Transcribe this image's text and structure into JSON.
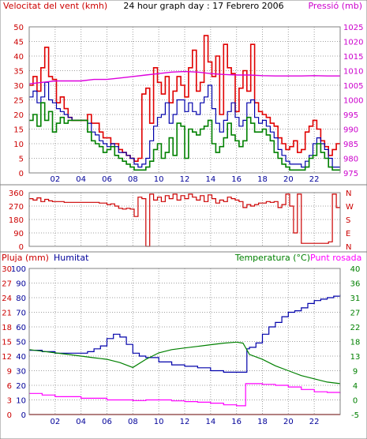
{
  "colors": {
    "wind": "#e00000",
    "wind_avg": "#0000aa",
    "wind_low": "#008000",
    "pressure": "#dd00dd",
    "direction": "#cc0000",
    "humidity": "#0000aa",
    "temperature": "#008000",
    "dew_point": "#ff00ff",
    "rain": "#cc0000",
    "grid": "#a0a0a0",
    "frame": "#808080",
    "left_axis": "#cc0000",
    "humidity_axis": "#000099",
    "temperature_axis": "#008000",
    "pressure_axis": "#cc00cc"
  },
  "chart_data": [
    {
      "type": "line",
      "title": "24 hour graph day : 17 Febrero 2006",
      "ylabel": "Velocitat del vent (kmh)",
      "y2label": "Pressió (mb)",
      "ylim": [
        0,
        50
      ],
      "y2lim": [
        975,
        1025
      ],
      "yticks": [
        "50",
        "45",
        "40",
        "35",
        "30",
        "25",
        "20",
        "15",
        "10",
        "5",
        "0"
      ],
      "y2ticks": [
        "1025",
        "1020",
        "1015",
        "1010",
        "1005",
        "1000",
        "995",
        "990",
        "985",
        "980",
        "975"
      ],
      "xlim": [
        0,
        24
      ],
      "xticks": [
        "02",
        "04",
        "06",
        "08",
        "10",
        "12",
        "14",
        "16",
        "18",
        "20",
        "22"
      ],
      "grid": true,
      "series": [
        {
          "key": "wind_gust",
          "axis": "left",
          "step": true,
          "x": [
            0.0,
            0.3,
            0.6,
            0.9,
            1.2,
            1.5,
            1.8,
            2.1,
            2.4,
            2.7,
            3.0,
            3.3,
            3.6,
            3.9,
            4.2,
            4.5,
            4.8,
            5.1,
            5.4,
            5.7,
            6.0,
            6.3,
            6.6,
            6.9,
            7.2,
            7.5,
            7.8,
            8.1,
            8.4,
            8.7,
            9.0,
            9.3,
            9.6,
            9.9,
            10.2,
            10.5,
            10.8,
            11.1,
            11.4,
            11.7,
            12.0,
            12.3,
            12.6,
            12.9,
            13.2,
            13.5,
            13.8,
            14.1,
            14.4,
            14.7,
            15.0,
            15.3,
            15.6,
            15.9,
            16.2,
            16.5,
            16.8,
            17.1,
            17.4,
            17.7,
            18.0,
            18.3,
            18.6,
            18.9,
            19.2,
            19.5,
            19.8,
            20.1,
            20.4,
            20.7,
            21.0,
            21.3,
            21.6,
            21.9,
            22.2,
            22.5,
            22.8,
            23.1,
            23.4,
            23.7
          ],
          "y": [
            30,
            33,
            28,
            36,
            43,
            33,
            32,
            24,
            26,
            22,
            19,
            18,
            18,
            18,
            18,
            20,
            17,
            17,
            14,
            12,
            12,
            10,
            10,
            8,
            7,
            6,
            5,
            4,
            5,
            27,
            29,
            17,
            36,
            31,
            27,
            33,
            24,
            28,
            33,
            30,
            26,
            36,
            42,
            28,
            31,
            47,
            38,
            33,
            40,
            20,
            44,
            36,
            34,
            21,
            29,
            35,
            28,
            44,
            24,
            21,
            20,
            19,
            17,
            16,
            12,
            10,
            8,
            9,
            11,
            7,
            8,
            14,
            16,
            18,
            15,
            11,
            9,
            6,
            8,
            10
          ]
        },
        {
          "key": "wind_avg",
          "axis": "left",
          "step": true,
          "x": [
            0.0,
            0.3,
            0.6,
            0.9,
            1.2,
            1.5,
            1.8,
            2.1,
            2.4,
            2.7,
            3.0,
            3.3,
            3.6,
            3.9,
            4.2,
            4.5,
            4.8,
            5.1,
            5.4,
            5.7,
            6.0,
            6.3,
            6.6,
            6.9,
            7.2,
            7.5,
            7.8,
            8.1,
            8.4,
            8.7,
            9.0,
            9.3,
            9.6,
            9.9,
            10.2,
            10.5,
            10.8,
            11.1,
            11.4,
            11.7,
            12.0,
            12.3,
            12.6,
            12.9,
            13.2,
            13.5,
            13.8,
            14.1,
            14.4,
            14.7,
            15.0,
            15.3,
            15.6,
            15.9,
            16.2,
            16.5,
            16.8,
            17.1,
            17.4,
            17.7,
            18.0,
            18.3,
            18.6,
            18.9,
            19.2,
            19.5,
            19.8,
            20.1,
            20.4,
            20.7,
            21.0,
            21.3,
            21.6,
            21.9,
            22.2,
            22.5,
            22.8,
            23.1,
            23.4,
            23.7
          ],
          "y": [
            26,
            28,
            24,
            26,
            31,
            25,
            24,
            22,
            21,
            20,
            19,
            18,
            18,
            18,
            18,
            17,
            14,
            13,
            11,
            10,
            9,
            10,
            9,
            7,
            7,
            6,
            5,
            3,
            2,
            3,
            5,
            11,
            16,
            19,
            20,
            24,
            17,
            20,
            25,
            25,
            21,
            24,
            21,
            20,
            24,
            26,
            30,
            22,
            17,
            14,
            18,
            21,
            24,
            19,
            16,
            18,
            24,
            25,
            19,
            17,
            18,
            16,
            14,
            12,
            8,
            6,
            4,
            3,
            3,
            3,
            2,
            4,
            6,
            10,
            12,
            10,
            8,
            5,
            2,
            2
          ]
        },
        {
          "key": "wind_low",
          "axis": "left",
          "step": true,
          "x": [
            0.0,
            0.3,
            0.6,
            0.9,
            1.2,
            1.5,
            1.8,
            2.1,
            2.4,
            2.7,
            3.0,
            3.3,
            3.6,
            3.9,
            4.2,
            4.5,
            4.8,
            5.1,
            5.4,
            5.7,
            6.0,
            6.3,
            6.6,
            6.9,
            7.2,
            7.5,
            7.8,
            8.1,
            8.4,
            8.7,
            9.0,
            9.3,
            9.6,
            9.9,
            10.2,
            10.5,
            10.8,
            11.1,
            11.4,
            11.7,
            12.0,
            12.3,
            12.6,
            12.9,
            13.2,
            13.5,
            13.8,
            14.1,
            14.4,
            14.7,
            15.0,
            15.3,
            15.6,
            15.9,
            16.2,
            16.5,
            16.8,
            17.1,
            17.4,
            17.7,
            18.0,
            18.3,
            18.6,
            18.9,
            19.2,
            19.5,
            19.8,
            20.1,
            20.4,
            20.7,
            21.0,
            21.3,
            21.6,
            21.9,
            22.2,
            22.5,
            22.8,
            23.1,
            23.4,
            23.7
          ],
          "y": [
            18,
            20,
            16,
            24,
            18,
            21,
            14,
            17,
            19,
            17,
            18,
            18,
            18,
            18,
            18,
            14,
            11,
            10,
            9,
            7,
            8,
            9,
            6,
            5,
            4,
            3,
            2,
            1,
            1,
            1,
            2,
            4,
            8,
            10,
            5,
            7,
            12,
            6,
            17,
            16,
            5,
            15,
            14,
            13,
            15,
            16,
            18,
            10,
            7,
            9,
            12,
            17,
            13,
            11,
            9,
            11,
            19,
            17,
            14,
            14,
            15,
            13,
            11,
            7,
            5,
            3,
            2,
            1,
            1,
            1,
            1,
            2,
            5,
            6,
            10,
            7,
            5,
            2,
            1,
            1
          ]
        },
        {
          "key": "pressure",
          "axis": "right",
          "step": false,
          "x": [
            0,
            1,
            2,
            3,
            4,
            5,
            6,
            7,
            8,
            9,
            10,
            11,
            12,
            13,
            14,
            15,
            16,
            17,
            18,
            19,
            20,
            21,
            22,
            23,
            24
          ],
          "y": [
            1005.5,
            1006,
            1006.5,
            1006.5,
            1006.5,
            1007,
            1007,
            1007.5,
            1008,
            1008.5,
            1009,
            1009.5,
            1009.7,
            1009.5,
            1009,
            1008.7,
            1008.5,
            1008.5,
            1008.3,
            1008.2,
            1008.2,
            1008.2,
            1008.3,
            1008.2,
            1008.2
          ]
        }
      ]
    },
    {
      "type": "line",
      "ylabel": "",
      "ylim": [
        0,
        360
      ],
      "yticks": [
        "360",
        "270",
        "180",
        "90",
        "0"
      ],
      "y2ticks": [
        "N",
        "W",
        "S",
        "E",
        "N"
      ],
      "xlim": [
        0,
        24
      ],
      "grid": true,
      "series": [
        {
          "key": "wind_direction",
          "axis": "left",
          "step": true,
          "x": [
            0.0,
            0.3,
            0.6,
            0.9,
            1.2,
            1.5,
            1.8,
            2.1,
            2.4,
            2.7,
            3.0,
            3.3,
            3.6,
            3.9,
            4.2,
            4.5,
            4.8,
            5.1,
            5.4,
            5.7,
            6.0,
            6.3,
            6.6,
            6.9,
            7.2,
            7.5,
            7.8,
            8.1,
            8.4,
            8.7,
            9.0,
            9.3,
            9.6,
            9.9,
            10.2,
            10.5,
            10.8,
            11.1,
            11.4,
            11.7,
            12.0,
            12.3,
            12.6,
            12.9,
            13.2,
            13.5,
            13.8,
            14.1,
            14.4,
            14.7,
            15.0,
            15.3,
            15.6,
            15.9,
            16.2,
            16.5,
            16.8,
            17.1,
            17.4,
            17.7,
            18.0,
            18.3,
            18.6,
            18.9,
            19.2,
            19.5,
            19.8,
            20.1,
            20.4,
            20.7,
            21.0,
            21.3,
            21.6,
            21.9,
            22.2,
            22.5,
            22.8,
            23.1,
            23.4,
            23.7
          ],
          "y": [
            320,
            310,
            325,
            300,
            315,
            305,
            300,
            300,
            300,
            295,
            295,
            295,
            295,
            295,
            295,
            295,
            295,
            295,
            290,
            290,
            280,
            285,
            270,
            255,
            250,
            255,
            250,
            200,
            330,
            320,
            0,
            350,
            310,
            330,
            300,
            340,
            320,
            350,
            310,
            340,
            320,
            350,
            330,
            310,
            340,
            300,
            345,
            320,
            290,
            310,
            300,
            330,
            320,
            310,
            300,
            260,
            280,
            270,
            280,
            290,
            290,
            300,
            295,
            300,
            260,
            280,
            350,
            270,
            90,
            350,
            20,
            20,
            20,
            20,
            20,
            20,
            20,
            30,
            350,
            260
          ]
        }
      ]
    },
    {
      "type": "line",
      "ylabel": "Pluja (mm)",
      "ylabel2": "Humitat",
      "y2label": "Temperatura (°C)",
      "y2label2": "Punt rosada",
      "rain_ylim": [
        0,
        30
      ],
      "rain_ticks": [
        "30",
        "27",
        "24",
        "21",
        "18",
        "15",
        "12",
        "9",
        "6",
        "3",
        "0"
      ],
      "humidity_ylim": [
        0,
        100
      ],
      "humidity_ticks": [
        "100",
        "90",
        "80",
        "70",
        "60",
        "50",
        "40",
        "30",
        "20",
        "10",
        "0"
      ],
      "temperature_ylim": [
        -5,
        40
      ],
      "temperature_ticks": [
        "40",
        "36",
        "31",
        "27",
        "22",
        "18",
        "13",
        "9",
        "4",
        "0",
        "-5"
      ],
      "xlim": [
        0,
        24
      ],
      "xticks": [
        "02",
        "04",
        "06",
        "08",
        "10",
        "12",
        "14",
        "16",
        "18",
        "20",
        "22"
      ],
      "grid": true,
      "series": [
        {
          "key": "humidity",
          "axis": "humidity",
          "step": true,
          "x": [
            0,
            1,
            2,
            3,
            4,
            4.5,
            5,
            5.5,
            6,
            6.5,
            7,
            7.5,
            8,
            8.5,
            9,
            10,
            11,
            12,
            13,
            14,
            15,
            16,
            16.5,
            16.8,
            17,
            17.5,
            18,
            18.5,
            19,
            19.5,
            20,
            20.5,
            21,
            21.5,
            22,
            22.5,
            23,
            23.5,
            24
          ],
          "y": [
            44,
            43,
            42,
            42,
            42,
            43,
            45,
            47,
            52,
            55,
            53,
            48,
            42,
            40,
            39,
            36,
            34,
            33,
            32,
            30,
            29,
            29,
            29,
            45,
            46,
            49,
            55,
            60,
            63,
            67,
            70,
            71,
            73,
            76,
            78,
            79,
            80,
            81,
            82
          ]
        },
        {
          "key": "temperature",
          "axis": "temperature",
          "step": false,
          "x": [
            0,
            1,
            2,
            3,
            4,
            5,
            6,
            7,
            8,
            9,
            10,
            11,
            12,
            13,
            14,
            15,
            16,
            16.5,
            17,
            18,
            19,
            20,
            21,
            22,
            23,
            24
          ],
          "y": [
            15,
            14.5,
            14,
            13.5,
            13,
            12.5,
            12,
            11,
            9.5,
            12,
            14,
            15,
            15.5,
            16,
            16.5,
            17,
            17.3,
            17,
            13.5,
            12,
            10,
            8.5,
            7,
            6,
            5,
            4.5
          ]
        },
        {
          "key": "dew_point",
          "axis": "temperature",
          "step": true,
          "x": [
            0,
            1,
            2,
            3,
            4,
            5,
            6,
            7,
            8,
            9,
            10,
            11,
            12,
            13,
            14,
            15,
            16,
            16.7,
            17,
            18,
            19,
            20,
            21,
            22,
            23,
            24
          ],
          "y": [
            1.5,
            1,
            0.5,
            0.5,
            0,
            0,
            -0.5,
            -0.5,
            -0.7,
            -0.5,
            -0.5,
            -0.8,
            -1,
            -1.2,
            -1.5,
            -2,
            -2.3,
            4.5,
            4.5,
            4.3,
            4,
            3.5,
            2.7,
            2,
            1.8,
            1.5
          ]
        },
        {
          "key": "rain",
          "axis": "rain",
          "step": false,
          "x": [
            0,
            24
          ],
          "y": [
            0,
            0
          ]
        }
      ]
    }
  ]
}
